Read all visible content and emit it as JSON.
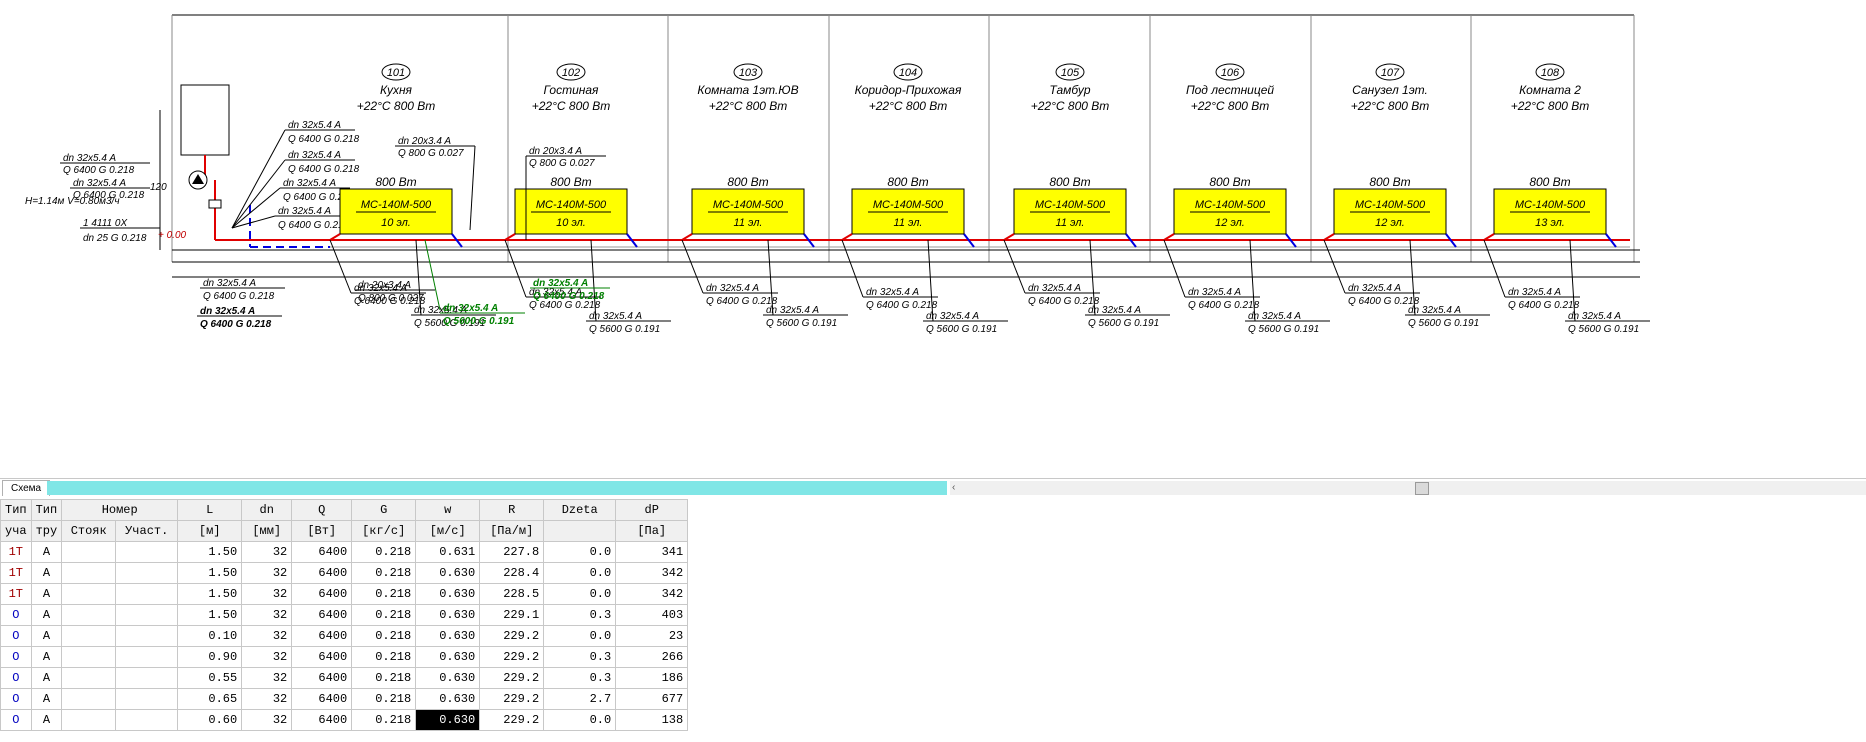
{
  "rooms": [
    {
      "num": "101",
      "name": "Кухня",
      "temp": "+22°С 800 Вт",
      "power": "800 Вт",
      "model": "МС-140М-500",
      "sections": "10 эл."
    },
    {
      "num": "102",
      "name": "Гостиная",
      "temp": "+22°С 800 Вт",
      "power": "800 Вт",
      "model": "МС-140М-500",
      "sections": "10 эл."
    },
    {
      "num": "103",
      "name": "Комната 1эт.ЮВ",
      "temp": "+22°С 800 Вт",
      "power": "800 Вт",
      "model": "МС-140М-500",
      "sections": "11 эл."
    },
    {
      "num": "104",
      "name": "Коридор-Прихожая",
      "temp": "+22°С 800 Вт",
      "power": "800 Вт",
      "model": "МС-140М-500",
      "sections": "11 эл."
    },
    {
      "num": "105",
      "name": "Тамбур",
      "temp": "+22°С 800 Вт",
      "power": "800 Вт",
      "model": "МС-140М-500",
      "sections": "11 эл."
    },
    {
      "num": "106",
      "name": "Под лестницей",
      "temp": "+22°С 800 Вт",
      "power": "800 Вт",
      "model": "МС-140М-500",
      "sections": "12 эл."
    },
    {
      "num": "107",
      "name": "Санузел 1эт.",
      "temp": "+22°С 800 Вт",
      "power": "800 Вт",
      "model": "МС-140М-500",
      "sections": "12 эл."
    },
    {
      "num": "108",
      "name": "Комната 2",
      "temp": "+22°С 800 Вт",
      "power": "800 Вт",
      "model": "МС-140М-500",
      "sections": "13 эл."
    }
  ],
  "labels": {
    "pipe_32": "dn 32x5.4 A",
    "flow_6400": "Q 6400  G 0.218",
    "pipe_20": "dn 20x3.4 A",
    "flow_800": "Q 800  G 0.027",
    "flow_5600": "Q 5600  G 0.191",
    "pump": "H=1.14м  V=0.80м3/ч",
    "valve": "1 4111 0X",
    "valve_dn": "dn 25  G 0.218",
    "level": "+ 0.00",
    "height": "120"
  },
  "tab": {
    "label": "Схема"
  },
  "scroll": {
    "arrow": "‹"
  },
  "table": {
    "header1": [
      "Тип",
      "Тип",
      "Номер",
      "L",
      "dn",
      "Q",
      "G",
      "w",
      "R",
      "Dzeta",
      "dP"
    ],
    "header2": [
      "уча",
      "тру",
      "Стояк",
      "Участ.",
      "[м]",
      "[мм]",
      "[Вт]",
      "[кг/с]",
      "[м/с]",
      "[Па/м]",
      "",
      "[Па]"
    ],
    "rows": [
      [
        "1Т",
        "A",
        "",
        "",
        "1.50",
        "32",
        "6400",
        "0.218",
        "0.631",
        "227.8",
        "0.0",
        "341"
      ],
      [
        "1Т",
        "A",
        "",
        "",
        "1.50",
        "32",
        "6400",
        "0.218",
        "0.630",
        "228.4",
        "0.0",
        "342"
      ],
      [
        "1Т",
        "A",
        "",
        "",
        "1.50",
        "32",
        "6400",
        "0.218",
        "0.630",
        "228.5",
        "0.0",
        "342"
      ],
      [
        "О",
        "A",
        "",
        "",
        "1.50",
        "32",
        "6400",
        "0.218",
        "0.630",
        "229.1",
        "0.3",
        "403"
      ],
      [
        "О",
        "A",
        "",
        "",
        "0.10",
        "32",
        "6400",
        "0.218",
        "0.630",
        "229.2",
        "0.0",
        "23"
      ],
      [
        "О",
        "A",
        "",
        "",
        "0.90",
        "32",
        "6400",
        "0.218",
        "0.630",
        "229.2",
        "0.3",
        "266"
      ],
      [
        "О",
        "A",
        "",
        "",
        "0.55",
        "32",
        "6400",
        "0.218",
        "0.630",
        "229.2",
        "0.3",
        "186"
      ],
      [
        "О",
        "A",
        "",
        "",
        "0.65",
        "32",
        "6400",
        "0.218",
        "0.630",
        "229.2",
        "2.7",
        "677"
      ],
      [
        "О",
        "A",
        "",
        "",
        "0.60",
        "32",
        "6400",
        "0.218",
        "0.630",
        "229.2",
        "0.0",
        "138"
      ]
    ]
  },
  "colors": {
    "supply": "#e00000",
    "return": "#0000e0",
    "radiator": "#ffff00",
    "highlight": "#008000",
    "tabstrip": "#80e6e6"
  }
}
